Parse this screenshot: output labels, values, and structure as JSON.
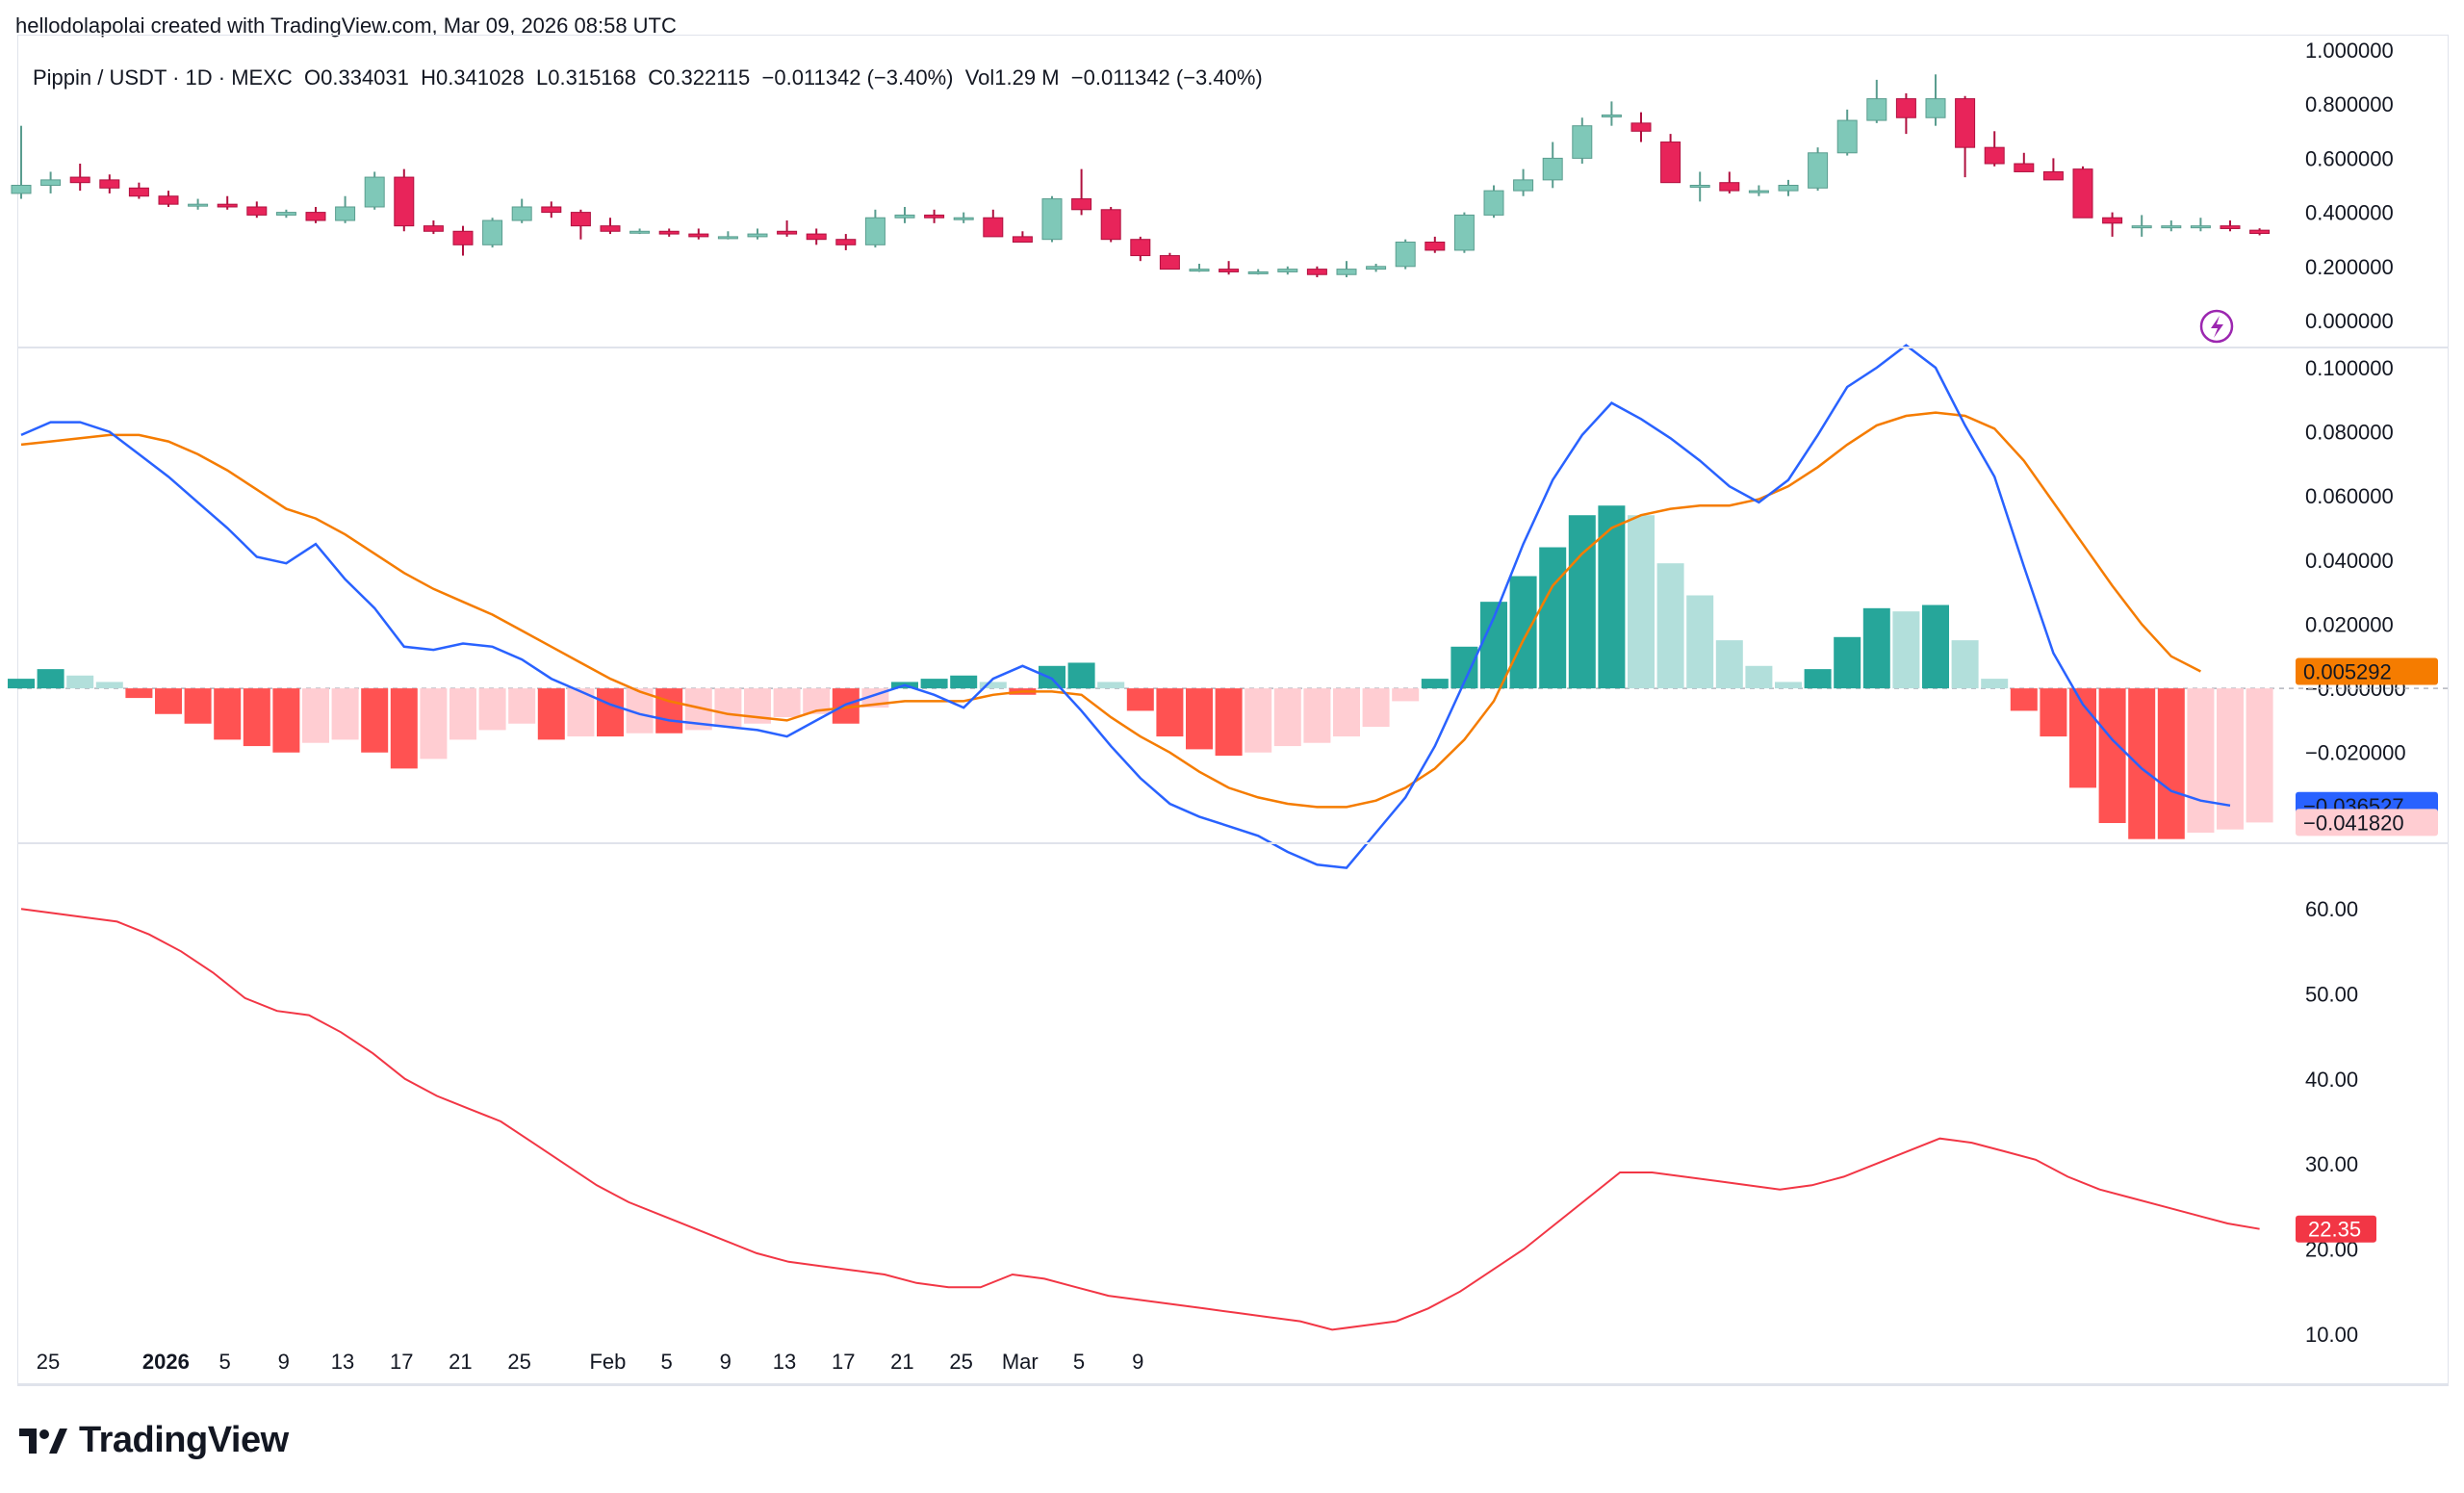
{
  "caption": "hellodolapolai created with TradingView.com, Mar 09, 2026 08:58 UTC",
  "legend": {
    "symbol": "Pippin / USDT · 1D · MEXC",
    "open": "O0.334031",
    "high": "H0.341028",
    "low": "L0.315168",
    "close": "C0.322115",
    "change": "−0.011342 (−3.40%)",
    "volume": "Vol1.29 M",
    "volume_change": "−0.011342 (−3.40%)"
  },
  "footer": {
    "brand": "TradingView"
  },
  "colors": {
    "up": "#7fc8b8",
    "down": "#e8245a",
    "macd": "#2962ff",
    "signal": "#f57c00",
    "hist_up_strong": "#26a69a",
    "hist_up_weak": "#b2dfdb",
    "hist_down_strong": "#ff5252",
    "hist_down_weak": "#ffcdd2",
    "adx": "#f23645"
  },
  "chart_data": [
    {
      "type": "candlestick",
      "title": "Pippin / USDT · 1D · MEXC",
      "x_ticks": [
        "25",
        "2026",
        "5",
        "9",
        "13",
        "17",
        "21",
        "25",
        "Feb",
        "5",
        "9",
        "13",
        "17",
        "21",
        "25",
        "Mar",
        "5",
        "9"
      ],
      "y_ticks": [
        "1.000000",
        "0.800000",
        "0.600000",
        "0.400000",
        "0.200000",
        "0.000000"
      ],
      "ylim": [
        0,
        1.0
      ],
      "candles_ohlc": [
        [
          0.47,
          0.72,
          0.45,
          0.5
        ],
        [
          0.5,
          0.55,
          0.47,
          0.52
        ],
        [
          0.53,
          0.58,
          0.48,
          0.51
        ],
        [
          0.52,
          0.54,
          0.47,
          0.49
        ],
        [
          0.49,
          0.51,
          0.45,
          0.46
        ],
        [
          0.46,
          0.48,
          0.42,
          0.43
        ],
        [
          0.43,
          0.45,
          0.41,
          0.43
        ],
        [
          0.43,
          0.46,
          0.41,
          0.42
        ],
        [
          0.42,
          0.44,
          0.38,
          0.39
        ],
        [
          0.39,
          0.41,
          0.38,
          0.4
        ],
        [
          0.4,
          0.42,
          0.36,
          0.37
        ],
        [
          0.37,
          0.46,
          0.36,
          0.42
        ],
        [
          0.42,
          0.55,
          0.41,
          0.53
        ],
        [
          0.53,
          0.56,
          0.33,
          0.35
        ],
        [
          0.35,
          0.37,
          0.32,
          0.33
        ],
        [
          0.33,
          0.35,
          0.24,
          0.28
        ],
        [
          0.28,
          0.38,
          0.27,
          0.37
        ],
        [
          0.37,
          0.45,
          0.36,
          0.42
        ],
        [
          0.42,
          0.44,
          0.38,
          0.4
        ],
        [
          0.4,
          0.41,
          0.3,
          0.35
        ],
        [
          0.35,
          0.38,
          0.32,
          0.33
        ],
        [
          0.33,
          0.34,
          0.32,
          0.33
        ],
        [
          0.33,
          0.34,
          0.31,
          0.32
        ],
        [
          0.32,
          0.34,
          0.3,
          0.31
        ],
        [
          0.31,
          0.33,
          0.3,
          0.31
        ],
        [
          0.31,
          0.34,
          0.3,
          0.32
        ],
        [
          0.33,
          0.37,
          0.31,
          0.32
        ],
        [
          0.32,
          0.34,
          0.28,
          0.3
        ],
        [
          0.3,
          0.32,
          0.26,
          0.28
        ],
        [
          0.28,
          0.41,
          0.27,
          0.38
        ],
        [
          0.38,
          0.42,
          0.36,
          0.39
        ],
        [
          0.39,
          0.41,
          0.36,
          0.38
        ],
        [
          0.38,
          0.4,
          0.36,
          0.38
        ],
        [
          0.38,
          0.41,
          0.31,
          0.31
        ],
        [
          0.31,
          0.33,
          0.29,
          0.29
        ],
        [
          0.3,
          0.46,
          0.29,
          0.45
        ],
        [
          0.45,
          0.56,
          0.39,
          0.41
        ],
        [
          0.41,
          0.42,
          0.29,
          0.3
        ],
        [
          0.3,
          0.31,
          0.22,
          0.24
        ],
        [
          0.24,
          0.25,
          0.19,
          0.19
        ],
        [
          0.19,
          0.21,
          0.18,
          0.19
        ],
        [
          0.19,
          0.22,
          0.17,
          0.18
        ],
        [
          0.18,
          0.19,
          0.17,
          0.18
        ],
        [
          0.18,
          0.2,
          0.17,
          0.19
        ],
        [
          0.19,
          0.2,
          0.16,
          0.17
        ],
        [
          0.17,
          0.22,
          0.16,
          0.19
        ],
        [
          0.19,
          0.21,
          0.18,
          0.2
        ],
        [
          0.2,
          0.3,
          0.19,
          0.29
        ],
        [
          0.29,
          0.31,
          0.25,
          0.26
        ],
        [
          0.26,
          0.4,
          0.25,
          0.39
        ],
        [
          0.39,
          0.5,
          0.38,
          0.48
        ],
        [
          0.48,
          0.56,
          0.46,
          0.52
        ],
        [
          0.52,
          0.66,
          0.49,
          0.6
        ],
        [
          0.6,
          0.75,
          0.58,
          0.72
        ],
        [
          0.76,
          0.81,
          0.72,
          0.76
        ],
        [
          0.73,
          0.77,
          0.66,
          0.7
        ],
        [
          0.66,
          0.69,
          0.52,
          0.51
        ],
        [
          0.5,
          0.55,
          0.44,
          0.5
        ],
        [
          0.51,
          0.55,
          0.47,
          0.48
        ],
        [
          0.48,
          0.5,
          0.46,
          0.48
        ],
        [
          0.48,
          0.52,
          0.46,
          0.5
        ],
        [
          0.49,
          0.64,
          0.48,
          0.62
        ],
        [
          0.62,
          0.78,
          0.61,
          0.74
        ],
        [
          0.74,
          0.89,
          0.73,
          0.82
        ],
        [
          0.82,
          0.84,
          0.69,
          0.75
        ],
        [
          0.75,
          0.91,
          0.72,
          0.82
        ],
        [
          0.82,
          0.83,
          0.53,
          0.64
        ],
        [
          0.64,
          0.7,
          0.57,
          0.58
        ],
        [
          0.58,
          0.62,
          0.55,
          0.55
        ],
        [
          0.55,
          0.6,
          0.52,
          0.52
        ],
        [
          0.56,
          0.57,
          0.38,
          0.38
        ],
        [
          0.38,
          0.4,
          0.31,
          0.36
        ],
        [
          0.35,
          0.39,
          0.31,
          0.35
        ],
        [
          0.35,
          0.37,
          0.33,
          0.35
        ],
        [
          0.35,
          0.38,
          0.33,
          0.35
        ],
        [
          0.35,
          0.37,
          0.33,
          0.34
        ],
        [
          0.334031,
          0.341028,
          0.315168,
          0.322115
        ]
      ]
    },
    {
      "type": "line",
      "title": "MACD",
      "y_ticks": [
        "0.100000",
        "0.080000",
        "0.060000",
        "0.040000",
        "0.020000",
        "−0.000000",
        "−0.020000"
      ],
      "ylim": [
        -0.048,
        0.106
      ],
      "series": [
        {
          "values": [
            0.079,
            0.083,
            0.083,
            0.08,
            0.073,
            0.066,
            0.058,
            0.05,
            0.041,
            0.039,
            0.045,
            0.034,
            0.025,
            0.013,
            0.012,
            0.014,
            0.013,
            0.009,
            0.003,
            -0.001,
            -0.005,
            -0.008,
            -0.01,
            -0.011,
            -0.012,
            -0.013,
            -0.015,
            -0.01,
            -0.005,
            -0.002,
            0.001,
            -0.002,
            -0.006,
            0.003,
            0.007,
            0.003,
            -0.007,
            -0.018,
            -0.028,
            -0.036,
            -0.04,
            -0.043,
            -0.046,
            -0.051,
            -0.055,
            -0.056,
            -0.045,
            -0.034,
            -0.018,
            0.002,
            0.022,
            0.045,
            0.065,
            0.079,
            0.089,
            0.084,
            0.078,
            0.071,
            0.063,
            0.058,
            0.065,
            0.079,
            0.094,
            0.1,
            0.107,
            0.1,
            0.082,
            0.066,
            0.038,
            0.011,
            -0.005,
            -0.016,
            -0.025,
            -0.032,
            -0.035,
            -0.036527
          ]
        },
        {
          "values": [
            0.076,
            0.077,
            0.078,
            0.079,
            0.079,
            0.077,
            0.073,
            0.068,
            0.062,
            0.056,
            0.053,
            0.048,
            0.042,
            0.036,
            0.031,
            0.027,
            0.023,
            0.018,
            0.013,
            0.008,
            0.003,
            -0.001,
            -0.004,
            -0.006,
            -0.008,
            -0.009,
            -0.01,
            -0.007,
            -0.006,
            -0.005,
            -0.004,
            -0.004,
            -0.004,
            -0.002,
            -0.001,
            -0.001,
            -0.002,
            -0.009,
            -0.015,
            -0.02,
            -0.026,
            -0.031,
            -0.034,
            -0.036,
            -0.037,
            -0.037,
            -0.035,
            -0.031,
            -0.025,
            -0.016,
            -0.004,
            0.015,
            0.032,
            0.042,
            0.05,
            0.054,
            0.056,
            0.057,
            0.057,
            0.059,
            0.063,
            0.069,
            0.076,
            0.082,
            0.085,
            0.086,
            0.085,
            0.081,
            0.071,
            0.058,
            0.045,
            0.032,
            0.02,
            0.01,
            0.005292
          ]
        },
        {
          "values": [
            0.003,
            0.006,
            0.004,
            0.002,
            -0.003,
            -0.008,
            -0.011,
            -0.016,
            -0.018,
            -0.02,
            -0.017,
            -0.016,
            -0.02,
            -0.025,
            -0.022,
            -0.016,
            -0.013,
            -0.011,
            -0.016,
            -0.015,
            -0.015,
            -0.014,
            -0.014,
            -0.013,
            -0.012,
            -0.011,
            -0.009,
            -0.008,
            -0.011,
            -0.006,
            0.002,
            0.003,
            0.004,
            0.002,
            -0.002,
            0.007,
            0.008,
            0.002,
            -0.007,
            -0.015,
            -0.019,
            -0.021,
            -0.02,
            -0.018,
            -0.017,
            -0.015,
            -0.012,
            -0.004,
            0.003,
            0.013,
            0.027,
            0.035,
            0.044,
            0.054,
            0.057,
            0.054,
            0.039,
            0.029,
            0.015,
            0.007,
            0.002,
            0.006,
            0.016,
            0.025,
            0.024,
            0.026,
            0.015,
            0.003,
            -0.007,
            -0.015,
            -0.031,
            -0.042,
            -0.047,
            -0.047,
            -0.045,
            -0.044,
            -0.04182
          ]
        }
      ],
      "last_labels": [
        "0.005292",
        "−0.036527",
        "−0.041820"
      ]
    },
    {
      "type": "line",
      "title": "ADX",
      "y_ticks": [
        "60.00",
        "50.00",
        "40.00",
        "30.00",
        "20.00",
        "10.00"
      ],
      "ylim": [
        5,
        65
      ],
      "series": [
        {
          "values": [
            60.0,
            59.5,
            59.0,
            58.5,
            57.0,
            55.0,
            52.5,
            49.5,
            48.0,
            47.5,
            45.5,
            43.0,
            40.0,
            38.0,
            36.5,
            35.0,
            32.5,
            30.0,
            27.5,
            25.5,
            24.0,
            22.5,
            21.0,
            19.5,
            18.5,
            18.0,
            17.5,
            17.0,
            16.0,
            15.5,
            15.5,
            17.0,
            16.5,
            15.5,
            14.5,
            14.0,
            13.5,
            13.0,
            12.5,
            12.0,
            11.5,
            10.5,
            11.0,
            11.5,
            13.0,
            15.0,
            17.5,
            20.0,
            23.0,
            26.0,
            29.0,
            29.0,
            28.5,
            28.0,
            27.5,
            27.0,
            27.5,
            28.5,
            30.0,
            31.5,
            33.0,
            32.5,
            31.5,
            30.5,
            28.5,
            27.0,
            26.0,
            25.0,
            24.0,
            23.0,
            22.35
          ]
        }
      ],
      "last_labels": [
        "22.35"
      ]
    }
  ]
}
